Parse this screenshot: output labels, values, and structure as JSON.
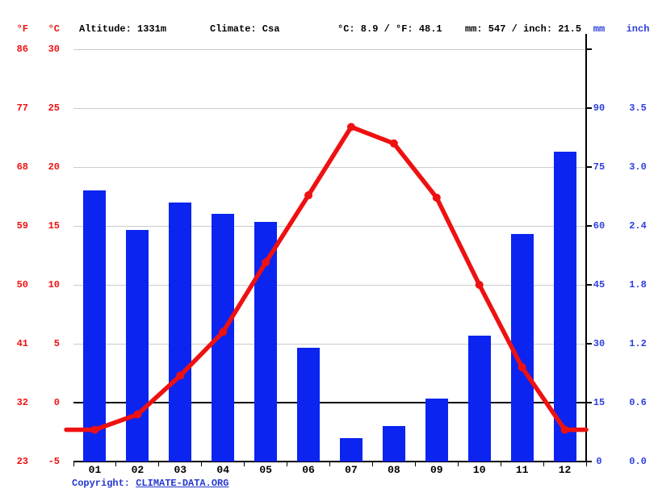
{
  "header": {
    "f_unit": "°F",
    "c_unit": "°C",
    "altitude": "Altitude: 1331m",
    "climate": "Climate: Csa",
    "temp_summary": "°C: 8.9 / °F: 48.1",
    "precip_summary": "mm: 547 / inch: 21.5",
    "mm_unit": "mm",
    "inch_unit": "inch"
  },
  "footer": {
    "copyright_prefix": "Copyright: ",
    "copyright_link": "CLIMATE-DATA.ORG"
  },
  "colors": {
    "temperature_red": "#ee1111",
    "precipitation_blue": "#0b24f0",
    "axis_label_red": "#ee1111",
    "axis_label_blue": "#2d3fdd",
    "link_blue": "#2438cf",
    "gridline_gray": "#cccccc",
    "axis_black": "#000000"
  },
  "chart_data": {
    "type": "combo-bar-line",
    "title": "",
    "categories": [
      "01",
      "02",
      "03",
      "04",
      "05",
      "06",
      "07",
      "08",
      "09",
      "10",
      "11",
      "12"
    ],
    "series": [
      {
        "name": "Precipitation",
        "type": "bar",
        "unit": "mm",
        "values": [
          69,
          59,
          66,
          63,
          61,
          29,
          6,
          9,
          16,
          32,
          58,
          79
        ]
      },
      {
        "name": "Temperature",
        "type": "line",
        "unit": "°C",
        "values": [
          -2.3,
          -1.0,
          2.3,
          6.0,
          11.9,
          17.6,
          23.4,
          22.0,
          17.4,
          10.0,
          3.0,
          -2.3
        ]
      }
    ],
    "temp_axis": {
      "range_c": [
        -5,
        30
      ],
      "f_ticks": [
        "86",
        "77",
        "68",
        "59",
        "50",
        "41",
        "32",
        "23"
      ],
      "c_ticks": [
        "30",
        "25",
        "20",
        "15",
        "10",
        "5",
        "0",
        "-5"
      ],
      "tick_values_c": [
        30,
        25,
        20,
        15,
        10,
        5,
        0,
        -5
      ]
    },
    "precip_axis": {
      "range_mm": [
        0,
        105
      ],
      "mm_per_5c": 15,
      "mm_ticks": [
        "90",
        "75",
        "60",
        "45",
        "30",
        "15",
        "0"
      ],
      "inch_ticks": [
        "3.5",
        "3.0",
        "2.4",
        "1.8",
        "1.2",
        "0.6",
        "0.0"
      ],
      "tick_values_mm": [
        90,
        75,
        60,
        45,
        30,
        15,
        0
      ]
    },
    "grid": true,
    "legend_position": "none"
  }
}
